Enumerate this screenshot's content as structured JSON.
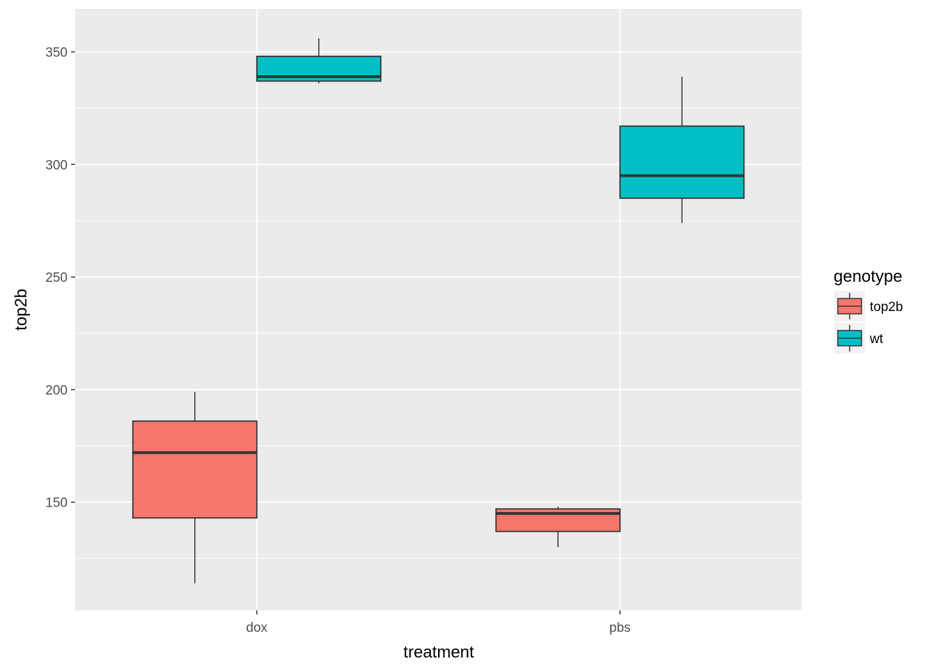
{
  "chart_data": {
    "type": "box",
    "xlabel": "treatment",
    "ylabel": "top2b",
    "categories": [
      "dox",
      "pbs"
    ],
    "ylim": [
      102,
      369
    ],
    "y_ticks": [
      150,
      200,
      250,
      300,
      350
    ],
    "grid": true,
    "legend": {
      "title": "genotype",
      "position": "right",
      "entries": [
        {
          "name": "top2b",
          "color": "#F8766D"
        },
        {
          "name": "wt",
          "color": "#00BFC4"
        }
      ]
    },
    "series": [
      {
        "name": "top2b",
        "color": "#F8766D",
        "boxes": [
          {
            "category": "dox",
            "min": 114,
            "q1": 143,
            "median": 172,
            "q3": 186,
            "max": 199
          },
          {
            "category": "pbs",
            "min": 130,
            "q1": 137,
            "median": 145,
            "q3": 147,
            "max": 148
          }
        ]
      },
      {
        "name": "wt",
        "color": "#00BFC4",
        "boxes": [
          {
            "category": "dox",
            "min": 336,
            "q1": 337,
            "median": 339,
            "q3": 348,
            "max": 356
          },
          {
            "category": "pbs",
            "min": 274,
            "q1": 285,
            "median": 295,
            "q3": 317,
            "max": 339
          }
        ]
      }
    ]
  }
}
